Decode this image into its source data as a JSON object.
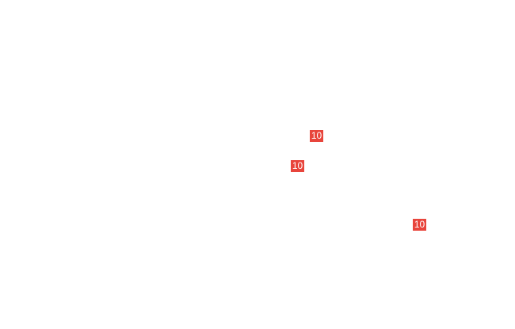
{
  "badge_color": "#e8453c",
  "badges": [
    {
      "label": "10"
    },
    {
      "label": "10"
    },
    {
      "label": "10"
    }
  ]
}
